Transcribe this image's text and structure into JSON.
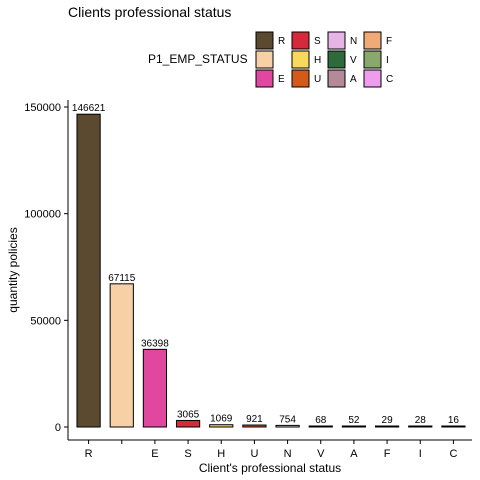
{
  "chart_data": {
    "type": "bar",
    "title": "Clients professional status",
    "xlabel": "Client's professional status",
    "ylabel": "quantity policies",
    "categories": [
      "R",
      "",
      "E",
      "S",
      "H",
      "U",
      "N",
      "V",
      "A",
      "F",
      "I",
      "C"
    ],
    "values": [
      146621,
      67115,
      36398,
      3065,
      1069,
      921,
      754,
      68,
      52,
      29,
      28,
      16
    ],
    "colors": [
      "#5c4a30",
      "#f8d0a6",
      "#e0479e",
      "#d42a3c",
      "#f9d95c",
      "#d45a1a",
      "#d8d8d8",
      "#2e6a3a",
      "#b48a98",
      "#f0aa78",
      "#88a86c",
      "#ee9cee"
    ],
    "ylim": [
      0,
      155000
    ],
    "yticks": [
      0,
      50000,
      100000,
      150000
    ],
    "grid": false,
    "legend": {
      "title": "P1_EMP_STATUS",
      "placement": "top",
      "entries": [
        {
          "label": "R",
          "color": "#5c4a30"
        },
        {
          "label": "",
          "color": "#f8d0a6"
        },
        {
          "label": "E",
          "color": "#e0479e"
        },
        {
          "label": "S",
          "color": "#d42a3c"
        },
        {
          "label": "H",
          "color": "#f9d95c"
        },
        {
          "label": "U",
          "color": "#d45a1a"
        },
        {
          "label": "N",
          "color": "#e8b4e8"
        },
        {
          "label": "V",
          "color": "#2e6a3a"
        },
        {
          "label": "A",
          "color": "#b48a98"
        },
        {
          "label": "F",
          "color": "#f0aa78"
        },
        {
          "label": "I",
          "color": "#88a86c"
        },
        {
          "label": "C",
          "color": "#ee9cee"
        }
      ]
    }
  }
}
